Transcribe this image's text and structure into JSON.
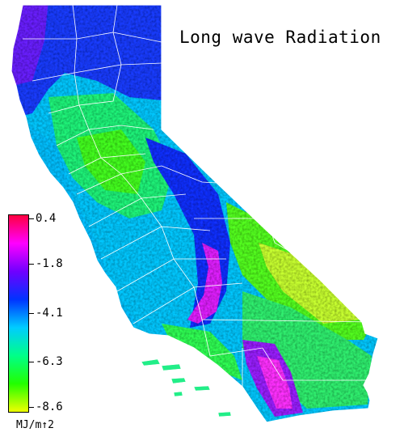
{
  "title": "Long wave Radiation",
  "legend": {
    "units": "MJ/m↑2",
    "ticks": [
      "0.4",
      "-1.8",
      "-4.1",
      "-6.3",
      "-8.6"
    ],
    "colors": [
      "#ff0040",
      "#ff00ff",
      "#7000ff",
      "#0033ff",
      "#00ccff",
      "#00ff88",
      "#22ff00",
      "#eeff00"
    ]
  }
}
